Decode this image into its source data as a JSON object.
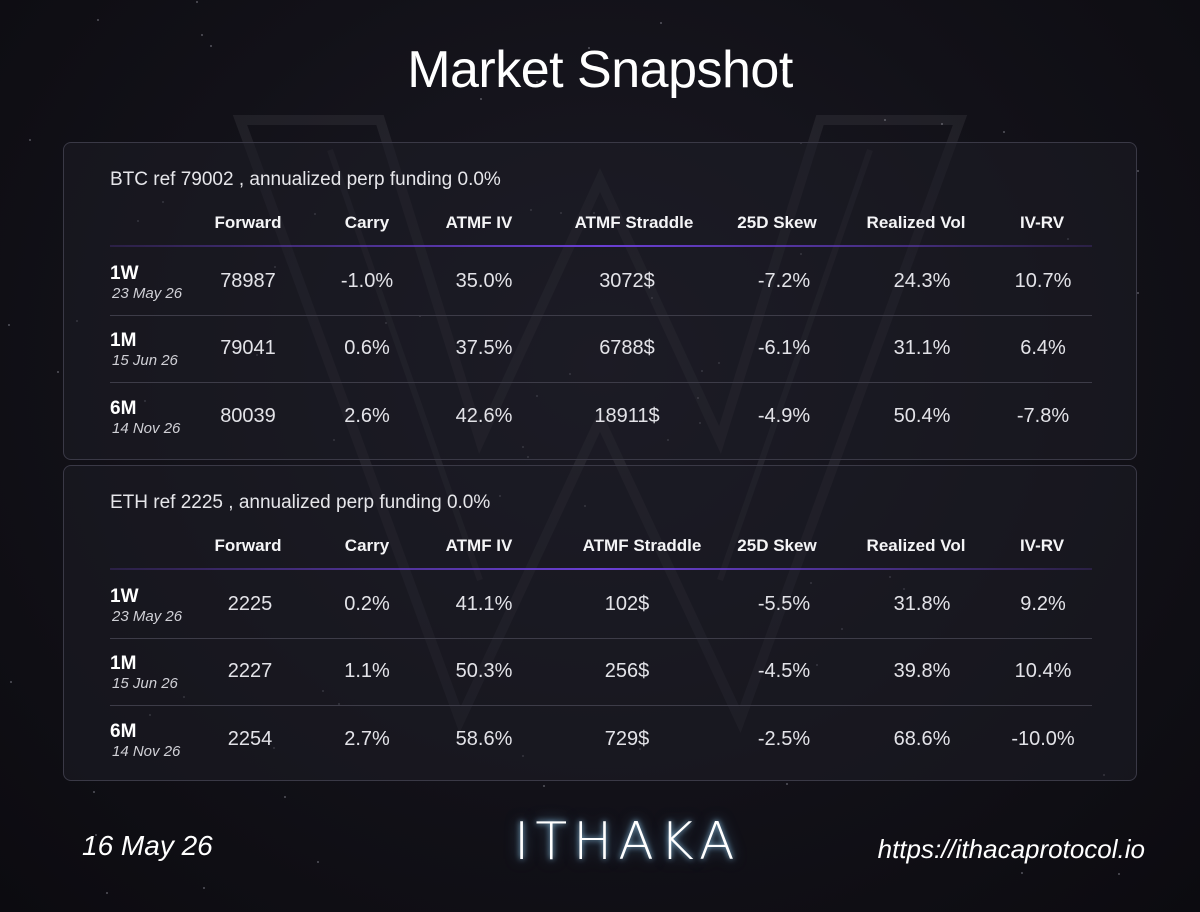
{
  "title": "Market Snapshot",
  "columns": [
    "Forward",
    "Carry",
    "ATMF IV",
    "ATMF Straddle",
    "25D Skew",
    "Realized Vol",
    "IV-RV"
  ],
  "tables": [
    {
      "ref_line": "BTC ref 79002 , annualized perp funding 0.0%",
      "rows": [
        {
          "tenor": "1W",
          "date": "23 May 26",
          "values": [
            "78987",
            "-1.0%",
            "35.0%",
            "3072$",
            "-7.2%",
            "24.3%",
            "10.7%"
          ]
        },
        {
          "tenor": "1M",
          "date": "15 Jun 26",
          "values": [
            "79041",
            "0.6%",
            "37.5%",
            "6788$",
            "-6.1%",
            "31.1%",
            "6.4%"
          ]
        },
        {
          "tenor": "6M",
          "date": "14 Nov 26",
          "values": [
            "80039",
            "2.6%",
            "42.6%",
            "18911$",
            "-4.9%",
            "50.4%",
            "-7.8%"
          ]
        }
      ]
    },
    {
      "ref_line": "ETH ref 2225 , annualized perp funding 0.0%",
      "rows": [
        {
          "tenor": "1W",
          "date": "23 May 26",
          "values": [
            "2225",
            "0.2%",
            "41.1%",
            "102$",
            "-5.5%",
            "31.8%",
            "9.2%"
          ]
        },
        {
          "tenor": "1M",
          "date": "15 Jun 26",
          "values": [
            "2227",
            "1.1%",
            "50.3%",
            "256$",
            "-4.5%",
            "39.8%",
            "10.4%"
          ]
        },
        {
          "tenor": "6M",
          "date": "14 Nov 26",
          "values": [
            "2254",
            "2.7%",
            "58.6%",
            "729$",
            "-2.5%",
            "68.6%",
            "-10.0%"
          ]
        }
      ]
    }
  ],
  "footer": {
    "date": "16 May 26",
    "logo": "ITHAKA",
    "url": "https://ithacaprotocol.io"
  }
}
